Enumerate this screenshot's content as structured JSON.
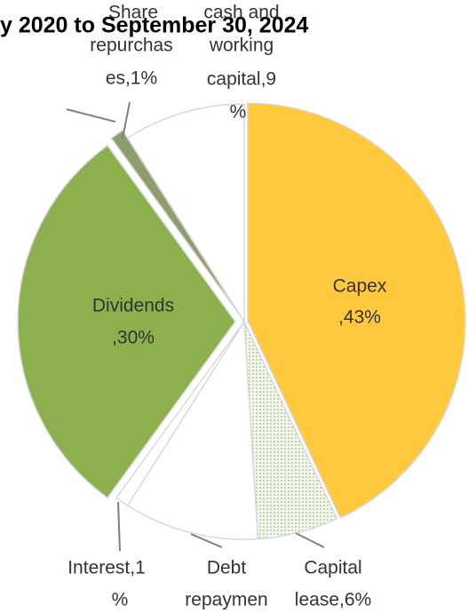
{
  "chart_data": {
    "type": "pie",
    "title": "y 2020 to September 30, 2024",
    "values": [
      43,
      6,
      10,
      1,
      30,
      1,
      9
    ],
    "value_labels": [
      [
        "Capex",
        ",43%"
      ],
      [
        "Capital",
        "lease,6%"
      ],
      [
        "Debt",
        "repaymen"
      ],
      [
        "Interest,1",
        "%"
      ],
      [
        "Dividends",
        ",30%"
      ],
      [
        "Share",
        "repurchas",
        "es,1%"
      ],
      [
        "cash and",
        "working",
        "capital,9",
        "%"
      ]
    ],
    "colors": [
      "#ffc83d",
      "#e3ecd3",
      "#ffffff",
      "#ffffff",
      "#8db04f",
      "#8c9f6a",
      "#ffffff"
    ]
  }
}
